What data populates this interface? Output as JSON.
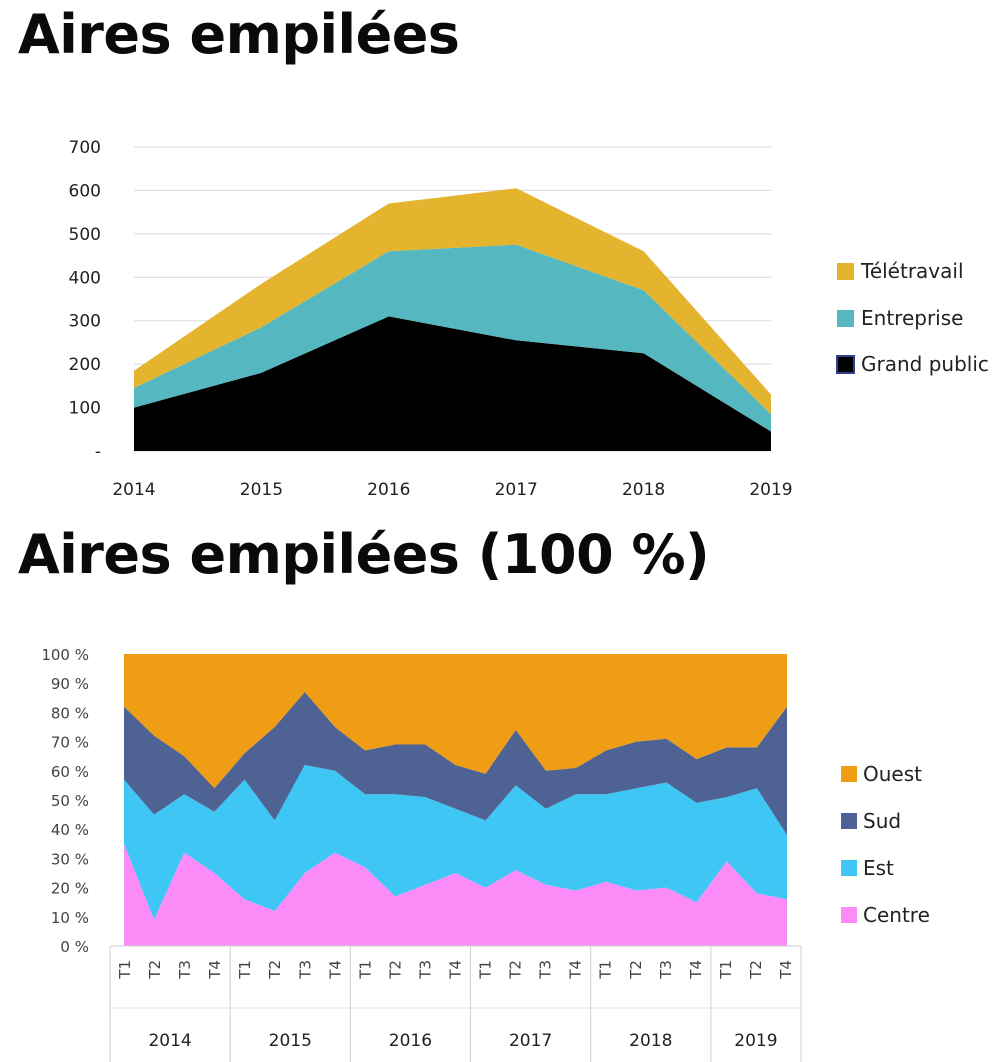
{
  "titles": {
    "stacked": "Aires empilées",
    "percent": "Aires empilées (100 %)"
  },
  "chart_data": [
    {
      "type": "area",
      "stacked": true,
      "title": "Aires empilées",
      "x": [
        "2014",
        "2015",
        "2016",
        "2017",
        "2018",
        "2019"
      ],
      "y_ticks": [
        "-",
        "100",
        "200",
        "300",
        "400",
        "500",
        "600",
        "700"
      ],
      "ylim": [
        0,
        700
      ],
      "grid": true,
      "legend_position": "right",
      "series": [
        {
          "name": "Grand public",
          "color": "#000000",
          "values": [
            100,
            180,
            310,
            255,
            225,
            45
          ]
        },
        {
          "name": "Entreprise",
          "color": "#55b8c0",
          "values": [
            45,
            105,
            150,
            220,
            145,
            40
          ]
        },
        {
          "name": "Télétravail",
          "color": "#e4b42e",
          "values": [
            40,
            100,
            110,
            130,
            90,
            45
          ]
        }
      ]
    },
    {
      "type": "area",
      "stacked": "percent",
      "title": "Aires empilées (100 %)",
      "x": [
        "T1",
        "T2",
        "T3",
        "T4",
        "T1",
        "T2",
        "T3",
        "T4",
        "T1",
        "T2",
        "T3",
        "T4",
        "T1",
        "T2",
        "T3",
        "T4",
        "T1",
        "T2",
        "T3",
        "T4",
        "T1",
        "T2",
        "T4"
      ],
      "groups": [
        {
          "label": "2014",
          "count": 4
        },
        {
          "label": "2015",
          "count": 4
        },
        {
          "label": "2016",
          "count": 4
        },
        {
          "label": "2017",
          "count": 4
        },
        {
          "label": "2018",
          "count": 4
        },
        {
          "label": "2019",
          "count": 3
        }
      ],
      "y_ticks": [
        "0 %",
        "10 %",
        "20 %",
        "30 %",
        "40 %",
        "50 %",
        "60 %",
        "70 %",
        "80 %",
        "90 %",
        "100 %"
      ],
      "ylim": [
        0,
        100
      ],
      "legend_position": "right",
      "series": [
        {
          "name": "Centre",
          "color": "#fb8cf7",
          "values": [
            35,
            9,
            32,
            25,
            16,
            12,
            25,
            32,
            27,
            17,
            21,
            25,
            20,
            26,
            21,
            19,
            22,
            19,
            20,
            15,
            29,
            18,
            16
          ]
        },
        {
          "name": "Est",
          "color": "#3ec7f5",
          "values": [
            22,
            36,
            20,
            21,
            41,
            31,
            37,
            28,
            25,
            35,
            30,
            22,
            23,
            29,
            26,
            33,
            30,
            35,
            36,
            34,
            22,
            36,
            22
          ]
        },
        {
          "name": "Sud",
          "color": "#4e6294",
          "values": [
            25,
            27,
            13,
            8,
            9,
            32,
            25,
            15,
            15,
            17,
            18,
            15,
            16,
            19,
            13,
            9,
            15,
            16,
            15,
            15,
            17,
            14,
            44
          ]
        },
        {
          "name": "Ouest",
          "color": "#ee9d14",
          "values": [
            18,
            28,
            35,
            46,
            34,
            25,
            13,
            25,
            33,
            31,
            31,
            38,
            41,
            26,
            40,
            39,
            33,
            30,
            29,
            36,
            32,
            32,
            18
          ]
        }
      ]
    }
  ]
}
